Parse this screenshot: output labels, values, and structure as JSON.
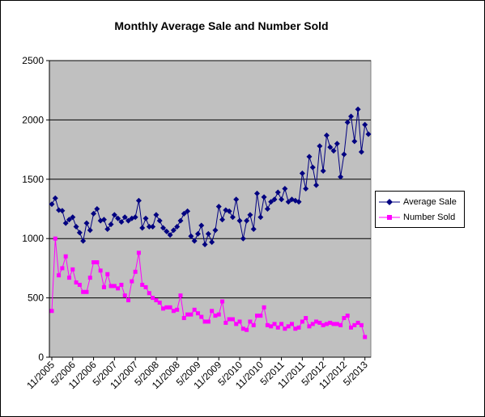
{
  "chart_data": {
    "type": "line",
    "title": "Monthly Average Sale and Number Sold",
    "xlabel": "",
    "ylabel": "",
    "ylim": [
      0,
      2500
    ],
    "yticks": [
      0,
      500,
      1000,
      1500,
      2000,
      2500
    ],
    "xticks": [
      "11/2005",
      "5/2006",
      "11/2006",
      "5/2007",
      "11/2007",
      "5/2008",
      "11/2008",
      "5/2009",
      "11/2009",
      "5/2010",
      "11/2010",
      "5/2011",
      "11/2011",
      "5/2012",
      "11/2012",
      "5/2013"
    ],
    "grid": "horizontal",
    "legend_position": "right",
    "plot_background": "#c0c0c0",
    "series": [
      {
        "name": "Average Sale",
        "color": "#000080",
        "marker": "diamond",
        "values": [
          1290,
          1340,
          1240,
          1235,
          1130,
          1160,
          1180,
          1100,
          1050,
          980,
          1130,
          1070,
          1210,
          1250,
          1150,
          1160,
          1080,
          1120,
          1200,
          1170,
          1140,
          1180,
          1150,
          1170,
          1180,
          1320,
          1090,
          1170,
          1100,
          1100,
          1200,
          1150,
          1090,
          1060,
          1030,
          1070,
          1100,
          1150,
          1210,
          1230,
          1020,
          980,
          1040,
          1110,
          950,
          1040,
          970,
          1070,
          1270,
          1160,
          1240,
          1230,
          1180,
          1330,
          1150,
          1000,
          1150,
          1200,
          1080,
          1380,
          1180,
          1350,
          1250,
          1310,
          1330,
          1390,
          1330,
          1420,
          1310,
          1330,
          1320,
          1310,
          1550,
          1420,
          1690,
          1600,
          1450,
          1780,
          1570,
          1870,
          1770,
          1740,
          1800,
          1520,
          1710,
          1980,
          2030,
          1820,
          2090,
          1730,
          1960,
          1880
        ]
      },
      {
        "name": "Number Sold",
        "color": "#ff00ff",
        "marker": "square",
        "values": [
          390,
          1000,
          690,
          750,
          850,
          670,
          740,
          630,
          610,
          550,
          550,
          670,
          800,
          800,
          730,
          590,
          700,
          600,
          600,
          580,
          610,
          520,
          480,
          640,
          720,
          880,
          610,
          590,
          540,
          500,
          480,
          460,
          410,
          420,
          420,
          390,
          400,
          520,
          330,
          360,
          360,
          400,
          370,
          340,
          300,
          300,
          390,
          350,
          360,
          470,
          290,
          320,
          320,
          280,
          300,
          240,
          230,
          300,
          270,
          350,
          350,
          420,
          270,
          260,
          280,
          250,
          280,
          240,
          260,
          280,
          240,
          250,
          300,
          330,
          260,
          280,
          300,
          290,
          270,
          280,
          290,
          280,
          280,
          270,
          330,
          350,
          250,
          270,
          290,
          270,
          170
        ]
      }
    ]
  }
}
